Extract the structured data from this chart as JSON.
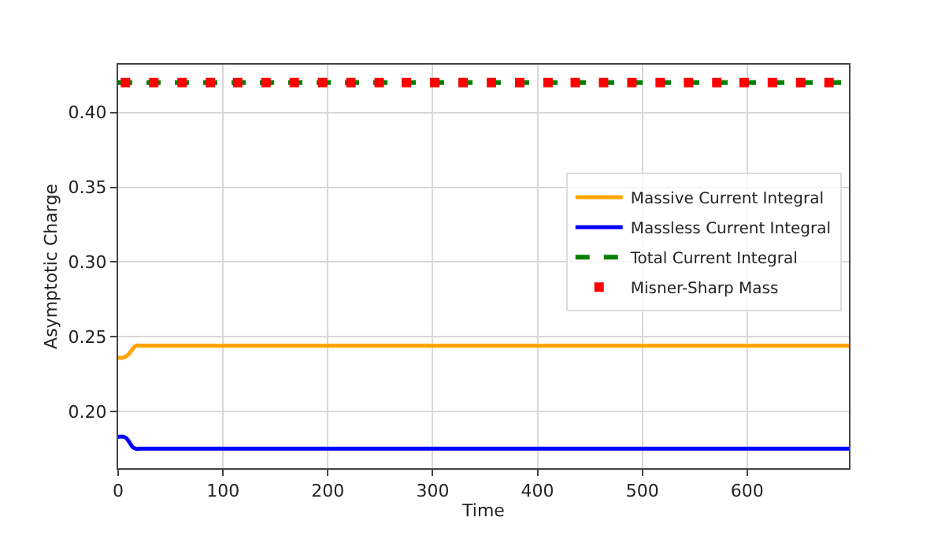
{
  "chart_data": {
    "type": "line",
    "xlabel": "Time",
    "ylabel": "Asymptotic Charge",
    "xlim": [
      0,
      697
    ],
    "ylim": [
      0.162,
      0.432
    ],
    "xticks": [
      0,
      100,
      200,
      300,
      400,
      500,
      600
    ],
    "yticks": [
      {
        "value": 0.2,
        "label": "0.20"
      },
      0.25,
      {
        "value": 0.3,
        "label": "0.30"
      },
      0.35,
      {
        "value": 0.4,
        "label": "0.40"
      }
    ],
    "grid": true,
    "legend": "right",
    "series": [
      {
        "name": "Massive Current Integral",
        "color": "#ffa500",
        "line_style": "solid",
        "marker": "none",
        "x": [
          0,
          5,
          8,
          11,
          14,
          17,
          20,
          697
        ],
        "values": [
          0.236,
          0.236,
          0.237,
          0.239,
          0.242,
          0.244,
          0.244,
          0.244
        ]
      },
      {
        "name": "Massless Current Integral",
        "color": "#0000ff",
        "line_style": "solid",
        "marker": "none",
        "x": [
          0,
          5,
          8,
          11,
          14,
          17,
          20,
          697
        ],
        "values": [
          0.183,
          0.183,
          0.182,
          0.179,
          0.176,
          0.175,
          0.175,
          0.175
        ]
      },
      {
        "name": "Total Current Integral",
        "color": "#008000",
        "line_style": "dashed",
        "marker": "none",
        "x": [
          0,
          697
        ],
        "values": [
          0.42,
          0.42
        ]
      },
      {
        "name": "Misner-Sharp Mass",
        "type": "scatter",
        "color": "#ff0000",
        "marker": "square",
        "x": [
          7,
          34,
          61,
          88,
          114,
          141,
          168,
          195,
          222,
          249,
          275,
          302,
          329,
          356,
          383,
          410,
          436,
          463,
          490,
          517,
          544,
          571,
          597,
          624,
          651,
          678
        ],
        "values": [
          0.42,
          0.42,
          0.42,
          0.42,
          0.42,
          0.42,
          0.42,
          0.42,
          0.42,
          0.42,
          0.42,
          0.42,
          0.42,
          0.42,
          0.42,
          0.42,
          0.42,
          0.42,
          0.42,
          0.42,
          0.42,
          0.42,
          0.42,
          0.42,
          0.42,
          0.42
        ]
      }
    ]
  }
}
